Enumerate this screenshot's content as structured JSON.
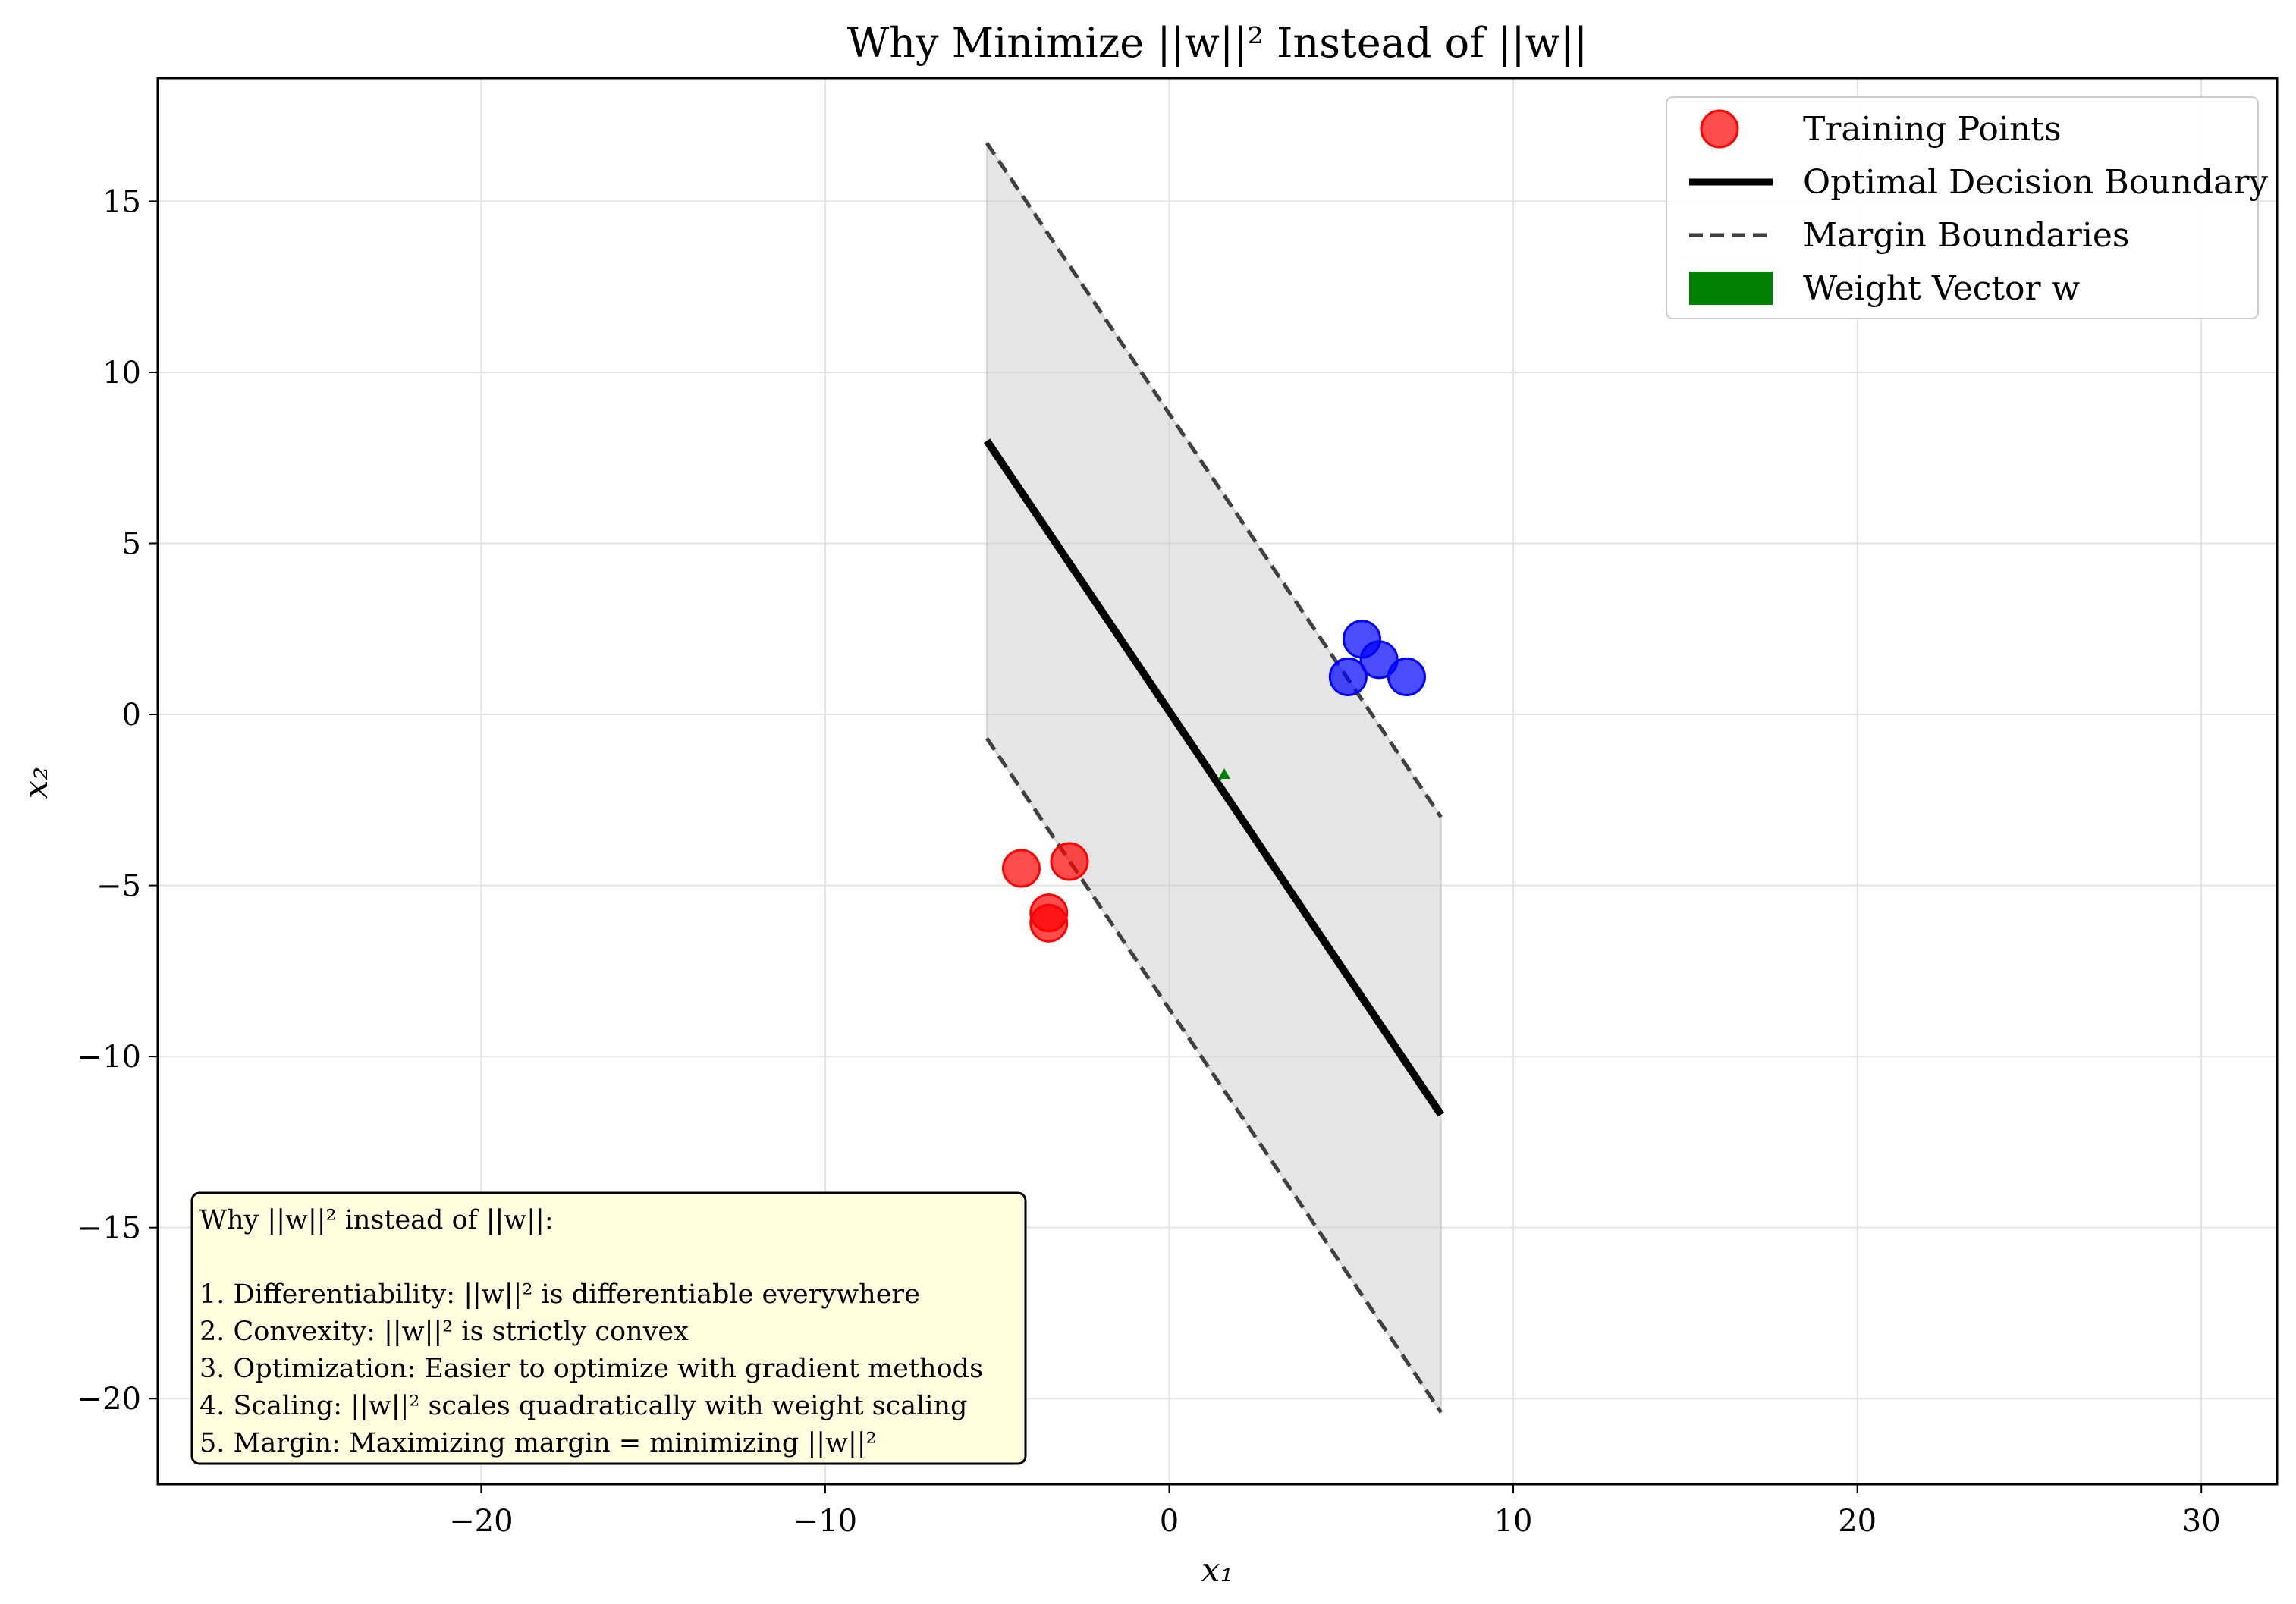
{
  "chart_data": {
    "type": "scatter",
    "title": "Why Minimize ||w||² Instead of ||w||",
    "xlabel": "x₁",
    "ylabel": "x₂",
    "xlim": [
      -29.4,
      32.2
    ],
    "ylim": [
      -22.5,
      18.6
    ],
    "xticks": [
      -20,
      -10,
      0,
      10,
      20,
      30
    ],
    "yticks": [
      -20,
      -15,
      -10,
      -5,
      0,
      5,
      10,
      15
    ],
    "xtick_labels": [
      "−20",
      "−10",
      "0",
      "10",
      "20",
      "30"
    ],
    "ytick_labels": [
      "−20",
      "−15",
      "−10",
      "−5",
      "0",
      "5",
      "10",
      "15"
    ],
    "grid": true,
    "legend_position": "top-right",
    "series": [
      {
        "name": "Training Points",
        "type": "scatter",
        "color": "#ff0000",
        "class": "negative",
        "points": [
          [
            -4.3,
            -4.5
          ],
          [
            -2.9,
            -4.3
          ],
          [
            -3.5,
            -5.8
          ],
          [
            -3.5,
            -6.1
          ]
        ]
      },
      {
        "type": "scatter",
        "color": "#0000ff",
        "class": "positive",
        "points": [
          [
            5.6,
            2.2
          ],
          [
            6.1,
            1.6
          ],
          [
            5.2,
            1.1
          ],
          [
            6.9,
            1.1
          ]
        ]
      },
      {
        "name": "Optimal Decision Boundary",
        "type": "line",
        "color": "#000000",
        "points": [
          [
            -5.3,
            8.0
          ],
          [
            7.9,
            -11.7
          ]
        ]
      },
      {
        "name": "Margin Boundaries",
        "type": "dashed-line",
        "color": "#404040",
        "lines": [
          [
            [
              -5.3,
              16.7
            ],
            [
              7.9,
              -3.0
            ]
          ],
          [
            [
              -5.3,
              -0.7
            ],
            [
              7.9,
              -20.4
            ]
          ]
        ]
      },
      {
        "name": "Weight Vector w",
        "type": "arrow",
        "color": "#008000",
        "from": [
          1.45,
          -1.9
        ],
        "to": [
          1.6,
          -1.75
        ]
      }
    ],
    "margin_region": {
      "color": "#cccccc",
      "x_range": [
        -5.3,
        7.9
      ]
    }
  },
  "legend": {
    "items": [
      {
        "label": "Training Points",
        "kind": "marker",
        "color": "#ff0000"
      },
      {
        "label": "Optimal Decision Boundary",
        "kind": "line",
        "color": "#000000"
      },
      {
        "label": "Margin Boundaries",
        "kind": "dashed",
        "color": "#404040"
      },
      {
        "label": "Weight Vector w",
        "kind": "patch",
        "color": "#008000"
      }
    ]
  },
  "note": {
    "lines": [
      "Why ||w||² instead of ||w||:",
      "",
      "1. Differentiability: ||w||² is differentiable everywhere",
      "2. Convexity: ||w||² is strictly convex",
      "3. Optimization: Easier to optimize with gradient methods",
      "4. Scaling: ||w||² scales quadratically with weight scaling",
      "5. Margin: Maximizing margin = minimizing ||w||²"
    ],
    "background": "#ffffe0"
  }
}
